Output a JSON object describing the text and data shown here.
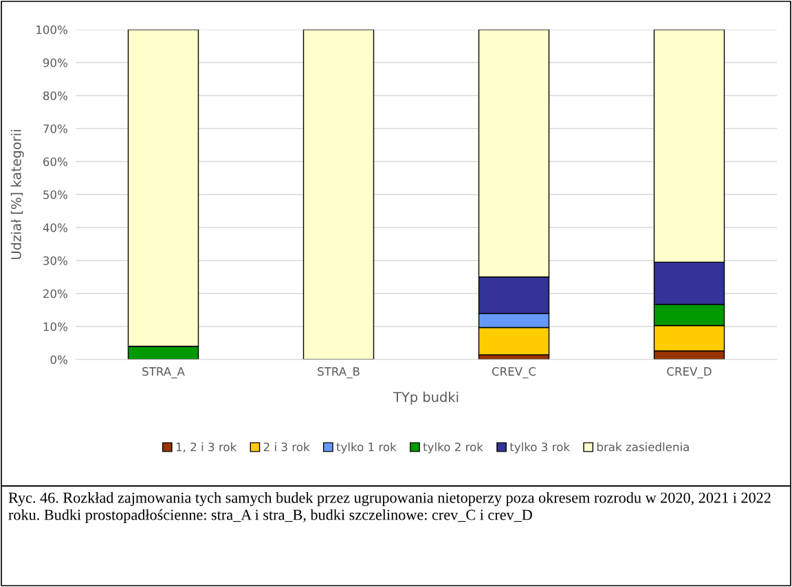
{
  "chart_data": {
    "type": "bar",
    "stacked": true,
    "xlabel": "TYp budki",
    "ylabel": "Udział [%] kategorii",
    "categories": [
      "STRA_A",
      "STRA_B",
      "CREV_C",
      "CREV_D"
    ],
    "series": [
      {
        "name": "1, 2 i 3 rok",
        "color": "#993300",
        "values": [
          0,
          0,
          1.4,
          2.6
        ]
      },
      {
        "name": "2 i 3 rok",
        "color": "#ffcc00",
        "values": [
          0,
          0,
          8.3,
          7.7
        ]
      },
      {
        "name": "tylko 1 rok",
        "color": "#6699ff",
        "values": [
          0,
          0,
          4.2,
          0
        ]
      },
      {
        "name": "tylko 2 rok",
        "color": "#009900",
        "values": [
          4,
          0,
          0,
          6.4
        ]
      },
      {
        "name": "tylko 3 rok",
        "color": "#333399",
        "values": [
          0,
          0,
          11.1,
          12.8
        ]
      },
      {
        "name": "brak zasiedlenia",
        "color": "#ffffcc",
        "values": [
          96,
          100,
          75,
          70.5
        ]
      }
    ],
    "ylim": [
      0,
      100
    ],
    "yticks": [
      {
        "value": 0,
        "label": "0%"
      },
      {
        "value": 10,
        "label": "10%"
      },
      {
        "value": 20,
        "label": "20%"
      },
      {
        "value": 30,
        "label": "30%"
      },
      {
        "value": 40,
        "label": "40%"
      },
      {
        "value": 50,
        "label": "50%"
      },
      {
        "value": 60,
        "label": "60%"
      },
      {
        "value": 70,
        "label": "70%"
      },
      {
        "value": 80,
        "label": "80%"
      },
      {
        "value": 90,
        "label": "90%"
      },
      {
        "value": 100,
        "label": "100%"
      }
    ],
    "grid": "y",
    "legend": "bottom",
    "annotations": [
      "Ryc. 46. Rozkład zajmowania tych samych budek przez ugrupowania nietoperzy poza okresem rozrodu w 2020, 2021 i 2022 roku. Budki prostopadłościenne: stra_A i stra_B, budki szczelinowe: crev_C i crev_D"
    ]
  }
}
